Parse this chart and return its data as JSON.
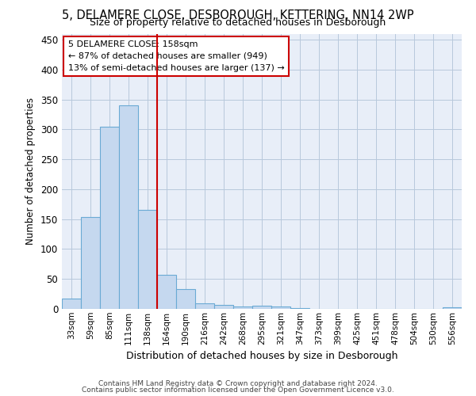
{
  "title": "5, DELAMERE CLOSE, DESBOROUGH, KETTERING, NN14 2WP",
  "subtitle": "Size of property relative to detached houses in Desborough",
  "xlabel": "Distribution of detached houses by size in Desborough",
  "ylabel": "Number of detached properties",
  "bar_labels": [
    "33sqm",
    "59sqm",
    "85sqm",
    "111sqm",
    "138sqm",
    "164sqm",
    "190sqm",
    "216sqm",
    "242sqm",
    "268sqm",
    "295sqm",
    "321sqm",
    "347sqm",
    "373sqm",
    "399sqm",
    "425sqm",
    "451sqm",
    "478sqm",
    "504sqm",
    "530sqm",
    "556sqm"
  ],
  "bar_values": [
    17,
    153,
    305,
    340,
    165,
    57,
    33,
    9,
    6,
    4,
    5,
    4,
    1,
    0,
    0,
    0,
    0,
    0,
    0,
    0,
    3
  ],
  "bar_color": "#c5d8ef",
  "bar_edgecolor": "#6aaad4",
  "vline_index": 5,
  "vline_color": "#cc0000",
  "annotation_title": "5 DELAMERE CLOSE: 158sqm",
  "annotation_line1": "← 87% of detached houses are smaller (949)",
  "annotation_line2": "13% of semi-detached houses are larger (137) →",
  "annotation_box_color": "#ffffff",
  "annotation_box_edgecolor": "#cc0000",
  "footer1": "Contains HM Land Registry data © Crown copyright and database right 2024.",
  "footer2": "Contains public sector information licensed under the Open Government Licence v3.0.",
  "ylim": [
    0,
    460
  ],
  "yticks": [
    0,
    50,
    100,
    150,
    200,
    250,
    300,
    350,
    400,
    450
  ],
  "background_color": "#ffffff",
  "plot_bg_color": "#e8eef8",
  "grid_color": "#b8c8dc"
}
